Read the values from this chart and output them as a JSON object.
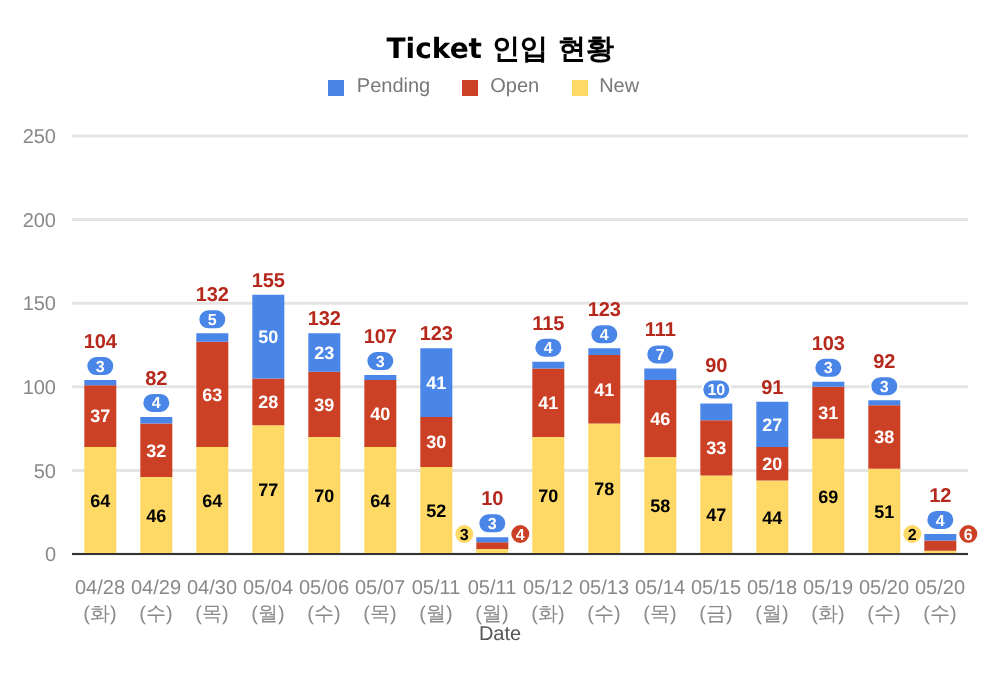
{
  "chart_data": {
    "type": "bar",
    "title": "Ticket 인입 현황",
    "xlabel": "Date",
    "stacked": true,
    "legend": "top",
    "grid": "y",
    "data_labels": true,
    "categories": [
      "04/28\n(화)",
      "04/29\n(수)",
      "04/30\n(목)",
      "05/04\n(월)",
      "05/06\n(수)",
      "05/07\n(목)",
      "05/11\n(월)",
      "05/11\n(월)",
      "05/12\n(화)",
      "05/13\n(수)",
      "05/14\n(목)",
      "05/15\n(금)",
      "05/18\n(월)",
      "05/19\n(화)",
      "05/20\n(수)",
      "05/20\n(수)"
    ],
    "series": [
      {
        "name": "New",
        "color": "#ffd966",
        "values": [
          64,
          46,
          64,
          77,
          70,
          64,
          52,
          3,
          70,
          78,
          58,
          47,
          44,
          69,
          51,
          2
        ]
      },
      {
        "name": "Open",
        "color": "#cc4125",
        "values": [
          37,
          32,
          63,
          28,
          39,
          40,
          30,
          4,
          41,
          41,
          46,
          33,
          20,
          31,
          38,
          6
        ]
      },
      {
        "name": "Pending",
        "color": "#4a86e8",
        "values": [
          3,
          4,
          5,
          50,
          23,
          3,
          41,
          3,
          4,
          4,
          7,
          10,
          27,
          3,
          3,
          4
        ]
      }
    ],
    "totals": [
      "104",
      "82",
      "132",
      "155",
      "132",
      "107",
      "123",
      "10",
      "115",
      "123",
      "111",
      "90",
      "91",
      "103",
      "92",
      "12"
    ],
    "ylim": [
      0,
      250
    ],
    "yticks": [
      0,
      50,
      100,
      150,
      200,
      250
    ]
  }
}
